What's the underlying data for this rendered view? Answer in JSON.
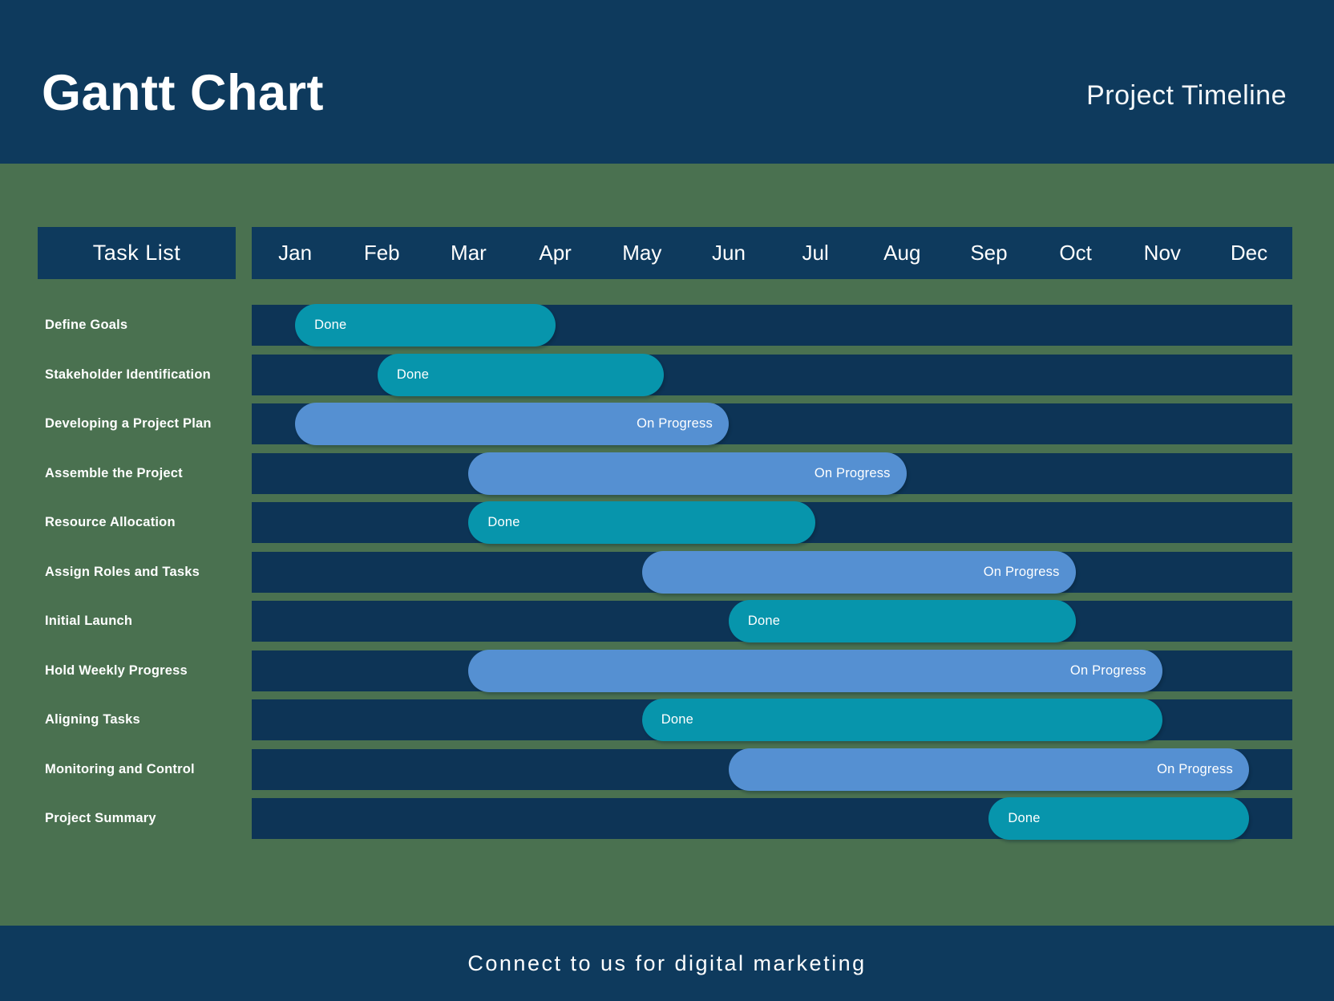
{
  "header": {
    "title": "Gantt Chart",
    "subtitle": "Project Timeline"
  },
  "table_header": {
    "task_list_label": "Task List"
  },
  "footer": {
    "text": "Connect to us for digital marketing"
  },
  "colors": {
    "background_green": "#4A7150",
    "panel_navy": "#0E3A5D",
    "track_navy": "#0D3456",
    "done_teal": "#0795AC",
    "progress_blue": "#5590D2",
    "text_white": "#FFFFFF"
  },
  "status_labels": {
    "done": "Done",
    "in_progress": "On Progress"
  },
  "chart_data": {
    "type": "gantt",
    "title": "Gantt Chart — Project Timeline",
    "x_axis_unit": "months",
    "x_range": [
      0,
      12
    ],
    "months": [
      "Jan",
      "Feb",
      "Mar",
      "Apr",
      "May",
      "Jun",
      "Jul",
      "Aug",
      "Sep",
      "Oct",
      "Nov",
      "Dec"
    ],
    "tasks": [
      {
        "name": "Define Goals",
        "start_month": 0.5,
        "end_month": 3.5,
        "status": "Done"
      },
      {
        "name": "Stakeholder Identification",
        "start_month": 1.45,
        "end_month": 4.75,
        "status": "Done"
      },
      {
        "name": "Developing a Project Plan",
        "start_month": 0.5,
        "end_month": 5.5,
        "status": "On Progress"
      },
      {
        "name": "Assemble the Project",
        "start_month": 2.5,
        "end_month": 7.55,
        "status": "On Progress"
      },
      {
        "name": "Resource Allocation",
        "start_month": 2.5,
        "end_month": 6.5,
        "status": "Done"
      },
      {
        "name": "Assign Roles and Tasks",
        "start_month": 4.5,
        "end_month": 9.5,
        "status": "On Progress"
      },
      {
        "name": "Initial Launch",
        "start_month": 5.5,
        "end_month": 9.5,
        "status": "Done"
      },
      {
        "name": "Hold Weekly Progress",
        "start_month": 2.5,
        "end_month": 10.5,
        "status": "On Progress"
      },
      {
        "name": "Aligning Tasks",
        "start_month": 4.5,
        "end_month": 10.5,
        "status": "Done"
      },
      {
        "name": "Monitoring and Control",
        "start_month": 5.5,
        "end_month": 11.5,
        "status": "On Progress"
      },
      {
        "name": "Project Summary",
        "start_month": 8.5,
        "end_month": 11.5,
        "status": "Done"
      }
    ]
  }
}
